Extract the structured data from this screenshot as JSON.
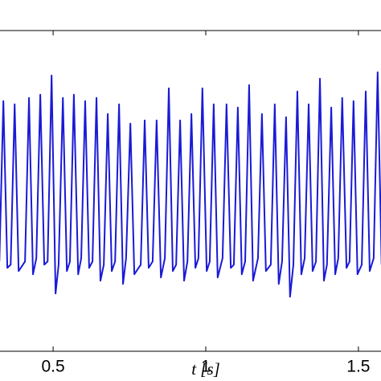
{
  "chart_data": {
    "type": "line",
    "xlabel": "t [s]",
    "xlim": [
      0.326,
      1.574
    ],
    "xticks": [
      0.5,
      1,
      1.5
    ],
    "ylim": [
      0,
      100
    ],
    "color": "#1a1ad6",
    "x": [
      0.324,
      0.337,
      0.35,
      0.361,
      0.374,
      0.387,
      0.408,
      0.421,
      0.434,
      0.445,
      0.458,
      0.471,
      0.482,
      0.495,
      0.508,
      0.518,
      0.532,
      0.545,
      0.555,
      0.568,
      0.582,
      0.592,
      0.605,
      0.618,
      0.629,
      0.642,
      0.655,
      0.666,
      0.679,
      0.692,
      0.703,
      0.716,
      0.729,
      0.739,
      0.753,
      0.766,
      0.787,
      0.8,
      0.813,
      0.826,
      0.839,
      0.853,
      0.866,
      0.879,
      0.892,
      0.903,
      0.916,
      0.929,
      0.94,
      0.953,
      0.966,
      0.976,
      0.989,
      1.003,
      1.013,
      1.026,
      1.039,
      1.055,
      1.068,
      1.082,
      1.092,
      1.105,
      1.118,
      1.129,
      1.142,
      1.155,
      1.171,
      1.184,
      1.197,
      1.213,
      1.226,
      1.239,
      1.25,
      1.263,
      1.276,
      1.287,
      1.3,
      1.313,
      1.324,
      1.337,
      1.35,
      1.361,
      1.374,
      1.387,
      1.397,
      1.411,
      1.424,
      1.434,
      1.447,
      1.461,
      1.471,
      1.484,
      1.497,
      1.511,
      1.524,
      1.537,
      1.55,
      1.563,
      1.576
    ],
    "values": [
      28,
      78,
      26,
      27,
      77,
      25,
      28,
      79,
      24,
      29,
      80,
      27,
      28,
      86,
      18,
      27,
      79,
      25,
      28,
      80,
      24,
      29,
      78,
      26,
      28,
      79,
      22,
      27,
      74,
      25,
      28,
      77,
      21,
      29,
      71,
      24,
      27,
      72,
      26,
      28,
      72,
      23,
      29,
      82,
      25,
      27,
      72,
      22,
      28,
      74,
      26,
      29,
      82,
      25,
      28,
      77,
      23,
      29,
      77,
      26,
      27,
      76,
      24,
      28,
      83,
      22,
      29,
      74,
      25,
      27,
      77,
      21,
      28,
      73,
      17,
      27,
      81,
      24,
      29,
      77,
      25,
      28,
      85,
      22,
      27,
      76,
      24,
      29,
      79,
      26,
      28,
      78,
      24,
      27,
      81,
      25,
      29,
      87,
      27
    ]
  }
}
